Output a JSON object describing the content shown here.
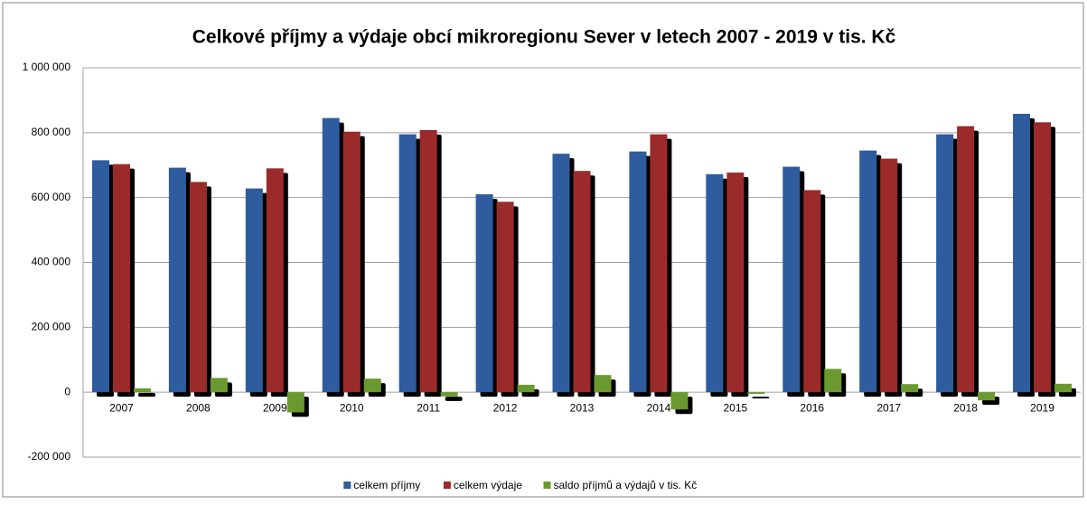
{
  "chart_data": {
    "type": "bar",
    "title": "Celkové příjmy a výdaje obcí mikroregionu Sever v letech 2007 - 2019 v tis. Kč",
    "categories": [
      "2007",
      "2008",
      "2009",
      "2010",
      "2011",
      "2012",
      "2013",
      "2014",
      "2015",
      "2016",
      "2017",
      "2018",
      "2019"
    ],
    "series": [
      {
        "name": "celkem příjmy",
        "color": "#2e5c9e",
        "values": [
          715000,
          692000,
          628000,
          845000,
          795000,
          610000,
          735000,
          742000,
          672000,
          695000,
          745000,
          795000,
          858000
        ]
      },
      {
        "name": "celkem výdaje",
        "color": "#9b2b2b",
        "values": [
          703000,
          648000,
          690000,
          803000,
          808000,
          587000,
          682000,
          795000,
          677000,
          623000,
          720000,
          820000,
          832000
        ]
      },
      {
        "name": "saldo příjmů a výdajů v tis. Kč",
        "color": "#6a9a2f",
        "values": [
          12000,
          44000,
          -62000,
          42000,
          -13000,
          23000,
          53000,
          -53000,
          -5000,
          72000,
          25000,
          -25000,
          26000
        ]
      }
    ],
    "ylim": [
      -200000,
      1000000
    ],
    "yticks": [
      {
        "value": -200000,
        "label": "-200 000"
      },
      0,
      {
        "value": 200000,
        "label": "200 000"
      },
      {
        "value": 400000,
        "label": "400 000"
      },
      {
        "value": 600000,
        "label": "600 000"
      },
      {
        "value": 800000,
        "label": "800 000"
      },
      {
        "value": 1000000,
        "label": "1 000 000"
      }
    ],
    "grid": true,
    "legend": "bottom"
  }
}
